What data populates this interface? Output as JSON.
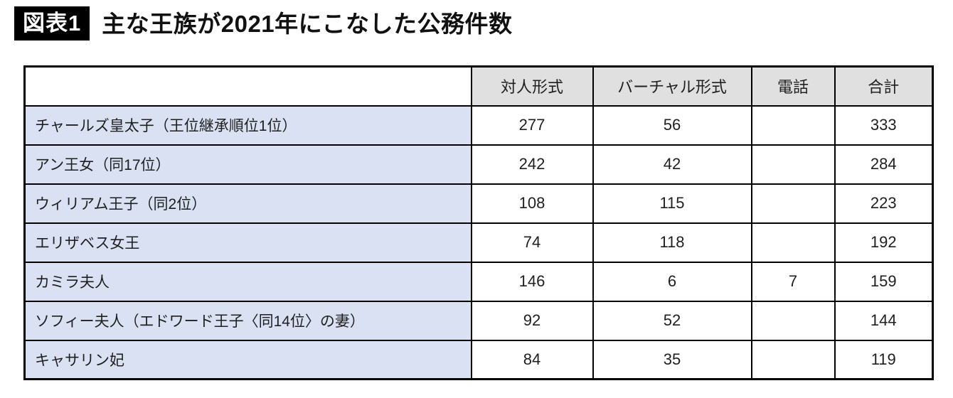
{
  "title": {
    "badge": "図表1",
    "text": "主な王族が2021年にこなした公務件数"
  },
  "table": {
    "columns": [
      "",
      "対人形式",
      "バーチャル形式",
      "電話",
      "合計"
    ],
    "rows": [
      {
        "label": "チャールズ皇太子（王位継承順位1位）",
        "values": [
          "277",
          "56",
          "",
          "333"
        ]
      },
      {
        "label": "アン王女（同17位）",
        "values": [
          "242",
          "42",
          "",
          "284"
        ]
      },
      {
        "label": "ウィリアム王子（同2位）",
        "values": [
          "108",
          "115",
          "",
          "223"
        ]
      },
      {
        "label": "エリザベス女王",
        "values": [
          "74",
          "118",
          "",
          "192"
        ]
      },
      {
        "label": "カミラ夫人",
        "values": [
          "146",
          "6",
          "7",
          "159"
        ]
      },
      {
        "label": "ソフィー夫人（エドワード王子〈同14位〉の妻）",
        "values": [
          "92",
          "52",
          "",
          "144"
        ]
      },
      {
        "label": "キャサリン妃",
        "values": [
          "84",
          "35",
          "",
          "119"
        ]
      }
    ]
  },
  "colors": {
    "label_cell_bg": "#d9e1f2",
    "header_cell_bg": "#e0e0e0",
    "border": "#000000",
    "badge_bg": "#000000",
    "text": "#1f1f1f"
  },
  "chart_data": {
    "type": "table",
    "title": "主な王族が2021年にこなした公務件数",
    "badge": "図表1",
    "columns": [
      "対人形式",
      "バーチャル形式",
      "電話",
      "合計"
    ],
    "rows": [
      {
        "name": "チャールズ皇太子（王位継承順位1位）",
        "values": [
          277,
          56,
          null,
          333
        ]
      },
      {
        "name": "アン王女（同17位）",
        "values": [
          242,
          42,
          null,
          284
        ]
      },
      {
        "name": "ウィリアム王子（同2位）",
        "values": [
          108,
          115,
          null,
          223
        ]
      },
      {
        "name": "エリザベス女王",
        "values": [
          74,
          118,
          null,
          192
        ]
      },
      {
        "name": "カミラ夫人",
        "values": [
          146,
          6,
          7,
          159
        ]
      },
      {
        "name": "ソフィー夫人（エドワード王子〈同14位〉の妻）",
        "values": [
          92,
          52,
          null,
          144
        ]
      },
      {
        "name": "キャサリン妃",
        "values": [
          84,
          35,
          null,
          119
        ]
      }
    ]
  }
}
